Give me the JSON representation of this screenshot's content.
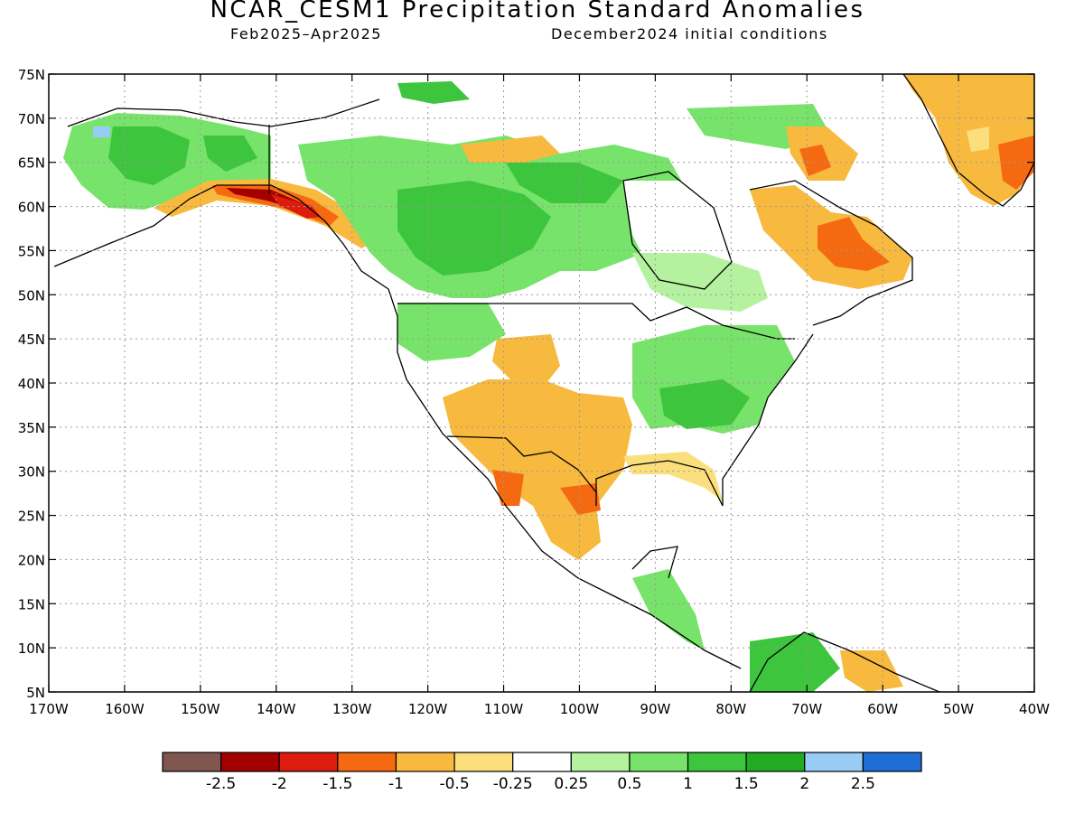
{
  "title": "NCAR_CESM1 Precipitation Standard Anomalies",
  "subtitle_left": "Feb2025–Apr2025",
  "subtitle_right": "December2024 initial conditions",
  "lat_labels": [
    "75N",
    "70N",
    "65N",
    "60N",
    "55N",
    "50N",
    "45N",
    "40N",
    "35N",
    "30N",
    "25N",
    "20N",
    "15N",
    "10N",
    "5N"
  ],
  "lon_labels": [
    "170W",
    "160W",
    "150W",
    "140W",
    "130W",
    "120W",
    "110W",
    "100W",
    "90W",
    "80W",
    "70W",
    "60W",
    "50W",
    "40W"
  ],
  "colorbar": {
    "colors": [
      "#7f574f",
      "#a50000",
      "#dd1c0d",
      "#f56a11",
      "#f8b93f",
      "#fbdf7d",
      "#ffffff",
      "#b5f2a0",
      "#78e36a",
      "#3dc53d",
      "#22aa22",
      "#97cdf5",
      "#1e6ed6"
    ],
    "tick_labels": [
      "-2.5",
      "-2",
      "-1.5",
      "-1",
      "-0.5",
      "-0.25",
      "0.25",
      "0.5",
      "1",
      "1.5",
      "2",
      "2.5"
    ]
  },
  "colors": {
    "green_light": "#b5f2a0",
    "green": "#78e36a",
    "green_mid": "#3dc53d",
    "orange_light": "#fbdf7d",
    "orange": "#f8b93f",
    "orange_dark": "#f56a11",
    "red": "#dd1c0d",
    "dark_red": "#a50000",
    "blue_light": "#97cdf5"
  }
}
